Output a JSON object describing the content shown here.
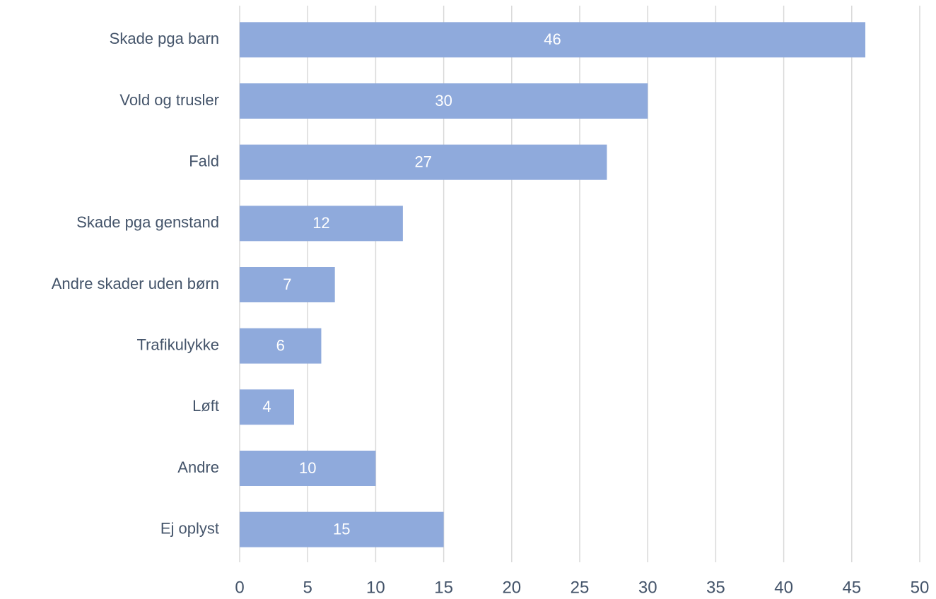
{
  "chart_data": {
    "type": "bar",
    "orientation": "horizontal",
    "categories": [
      "Skade pga barn",
      "Vold og trusler",
      "Fald",
      "Skade pga genstand",
      "Andre skader uden børn",
      "Trafikulykke",
      "Løft",
      "Andre",
      "Ej oplyst"
    ],
    "values": [
      46,
      30,
      27,
      12,
      7,
      6,
      4,
      10,
      15
    ],
    "color": "#8faadc",
    "xlim": [
      0,
      50
    ],
    "xticks": [
      0,
      5,
      10,
      15,
      20,
      25,
      30,
      35,
      40,
      45,
      50
    ],
    "grid": true,
    "data_labels": true
  }
}
